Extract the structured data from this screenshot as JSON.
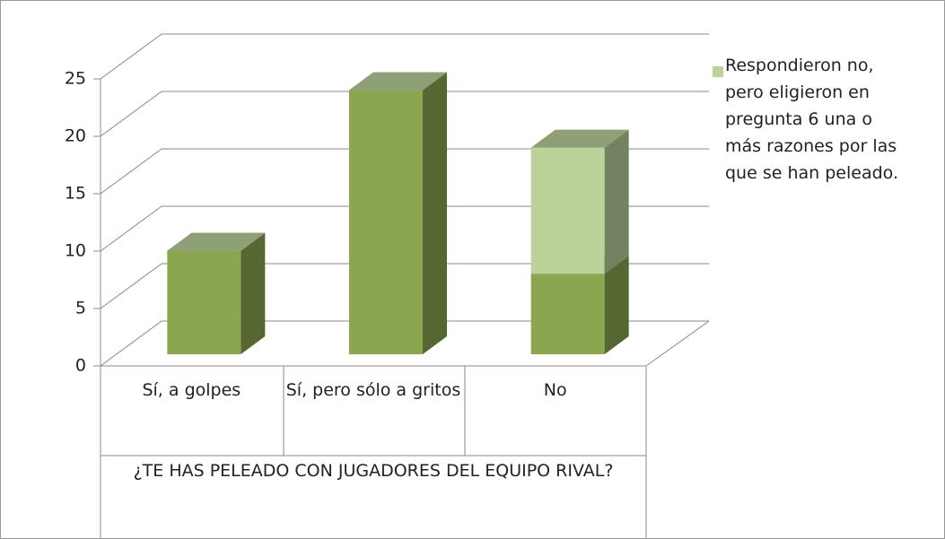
{
  "chart_data": {
    "type": "bar3d-stacked",
    "categories": [
      "Sí, a golpes",
      "Sí, pero sólo a gritos",
      "No"
    ],
    "x_label": "¿TE HAS PELEADO CON JUGADORES DEL EQUIPO RIVAL?",
    "series": [
      {
        "color": "#8aa64f",
        "values": [
          9,
          23,
          7
        ]
      },
      {
        "name": "Respondieron no, pero eligieron en pregunta 6 una o más razones por las que se han peleado.",
        "color": "#bcd29b",
        "values": [
          0,
          0,
          11
        ]
      }
    ],
    "ylim": [
      0,
      25
    ],
    "yticks": [
      0,
      5,
      10,
      15,
      20,
      25
    ],
    "grid": true,
    "legend": "right"
  }
}
